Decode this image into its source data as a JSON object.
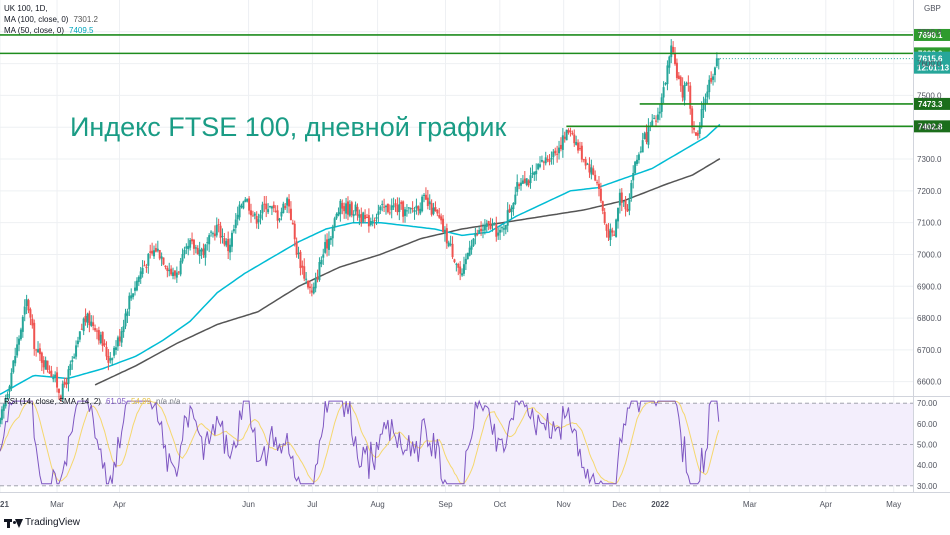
{
  "legend": {
    "symbol": "UK 100, 1D,",
    "ma100_label": "MA (100, close, 0)",
    "ma100_value": "7301.2",
    "ma50_label": "MA (50, close, 0)",
    "ma50_value": "7409.5",
    "rsi_label": "RSI (14, close, SMA, 14, 2)",
    "rsi_value": "61.05",
    "rsi_ma_value": "54.99",
    "rsi_na": "n/a  n/a"
  },
  "currency": "GBP",
  "title": "Индекс FTSE 100, дневной график",
  "brand": "TradingView",
  "colors": {
    "up": "#26a69a",
    "down": "#ef5350",
    "ma50": "#00bcd4",
    "ma100": "#555555",
    "level_line": "#1e8c1e",
    "level_badge": "#1b6e1b",
    "price_badge": "#26a69a",
    "rsi_line": "#7e57c2",
    "rsi_ma": "#f5d76e",
    "rsi_fill": "#f3eefc",
    "title": "#1a9c85"
  },
  "chart_data": {
    "type": "candlestick",
    "y_axis": {
      "ticks": [
        "6600.0",
        "6700.0",
        "6800.0",
        "6900.0",
        "7000.0",
        "7100.0",
        "7200.0",
        "7300.0",
        "7400.0",
        "7500.0",
        "7600.0",
        "7700.0"
      ],
      "range": [
        6555,
        7800
      ]
    },
    "x_axis": {
      "ticks": [
        "2021",
        "Mar",
        "Apr",
        "Jun",
        "Jul",
        "Aug",
        "Sep",
        "Oct",
        "Nov",
        "Dec",
        "2022",
        "Mar",
        "Apr",
        "May"
      ],
      "tick_days": [
        0,
        42,
        88,
        183,
        230,
        278,
        328,
        368,
        415,
        456,
        486,
        552,
        608,
        658
      ]
    },
    "price_anchors_days": [
      0,
      12,
      20,
      26,
      38,
      45,
      55,
      62,
      70,
      80,
      88,
      95,
      105,
      115,
      120,
      128,
      140,
      150,
      160,
      168,
      180,
      188,
      196,
      205,
      212,
      218,
      223,
      230,
      236,
      242,
      250,
      262,
      270,
      280,
      290,
      300,
      312,
      322,
      330,
      336,
      340,
      346,
      355,
      362,
      368,
      375,
      380,
      385,
      390,
      402,
      410,
      416,
      420,
      426,
      432,
      440,
      446,
      452,
      456,
      462,
      466,
      472,
      478,
      484,
      490,
      494,
      498,
      502,
      506,
      510,
      514,
      518,
      522,
      526,
      530
    ],
    "price_anchors_close": [
      6470,
      6700,
      6860,
      6700,
      6630,
      6560,
      6680,
      6800,
      6780,
      6670,
      6740,
      6860,
      6960,
      7020,
      6990,
      6930,
      7030,
      7010,
      7090,
      7020,
      7190,
      7110,
      7160,
      7120,
      7180,
      7020,
      6950,
      6870,
      6980,
      7050,
      7150,
      7140,
      7100,
      7140,
      7150,
      7130,
      7170,
      7120,
      7040,
      6980,
      6920,
      7040,
      7080,
      7090,
      7060,
      7140,
      7200,
      7250,
      7230,
      7300,
      7330,
      7370,
      7400,
      7330,
      7290,
      7230,
      7080,
      7050,
      7190,
      7150,
      7260,
      7340,
      7390,
      7430,
      7550,
      7640,
      7580,
      7500,
      7560,
      7390,
      7360,
      7480,
      7540,
      7590,
      7615
    ],
    "ma50_anchors_days": [
      0,
      25,
      50,
      75,
      100,
      120,
      140,
      160,
      180,
      200,
      220,
      240,
      260,
      280,
      300,
      320,
      340,
      360,
      380,
      400,
      420,
      440,
      460,
      480,
      500,
      520,
      530
    ],
    "ma50_anchors_values": [
      6560,
      6620,
      6610,
      6640,
      6680,
      6730,
      6790,
      6880,
      6940,
      6990,
      7040,
      7080,
      7100,
      7100,
      7090,
      7080,
      7060,
      7070,
      7120,
      7160,
      7200,
      7210,
      7240,
      7270,
      7320,
      7370,
      7409
    ],
    "ma100_anchors_days": [
      70,
      100,
      130,
      160,
      190,
      220,
      250,
      280,
      310,
      340,
      370,
      400,
      430,
      460,
      490,
      510,
      530
    ],
    "ma100_anchors_values": [
      6590,
      6650,
      6720,
      6780,
      6820,
      6900,
      6960,
      7000,
      7050,
      7080,
      7100,
      7120,
      7140,
      7170,
      7220,
      7250,
      7301
    ],
    "levels": [
      {
        "value": 7690.1,
        "label": "7690.1",
        "start_day": 0
      },
      {
        "value": 7632.2,
        "label": "7632.2",
        "start_day": 0
      },
      {
        "value": 7473.3,
        "label": "7473.3",
        "start_day": 471
      },
      {
        "value": 7402.8,
        "label": "7402.8",
        "start_day": 417
      }
    ],
    "last_price": {
      "value": 7615.6,
      "label": "7615.6",
      "time_label": "12:01:13"
    },
    "rsi": {
      "y_ticks": [
        "30.00",
        "40.00",
        "50.00",
        "60.00",
        "70.00"
      ],
      "range": [
        27,
        73
      ],
      "bands": [
        30,
        50,
        70
      ],
      "fill_range": [
        30,
        70
      ],
      "last_value": 61.05,
      "last_ma": 54.99
    }
  }
}
